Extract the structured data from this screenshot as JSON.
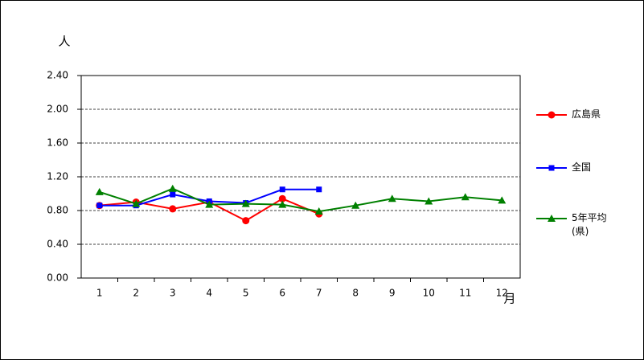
{
  "chart_data": {
    "type": "line",
    "y_unit": "人",
    "x_unit": "月",
    "categories": [
      "1",
      "2",
      "3",
      "4",
      "5",
      "6",
      "7",
      "8",
      "9",
      "10",
      "11",
      "12"
    ],
    "series": [
      {
        "name": "広島県",
        "color": "#ff0000",
        "marker": "circle",
        "values": [
          0.86,
          0.9,
          0.82,
          0.9,
          0.68,
          0.94,
          0.76,
          null,
          null,
          null,
          null,
          null
        ]
      },
      {
        "name": "全国",
        "color": "#0000ff",
        "marker": "square",
        "values": [
          0.86,
          0.86,
          0.99,
          0.91,
          0.89,
          1.05,
          1.05,
          null,
          null,
          null,
          null,
          null
        ]
      },
      {
        "name": "5年平均 (県)",
        "color": "#008000",
        "marker": "triangle",
        "values": [
          1.02,
          0.88,
          1.06,
          0.87,
          0.88,
          0.87,
          0.79,
          0.86,
          0.94,
          0.91,
          0.96,
          0.92
        ]
      }
    ],
    "ylim": [
      0,
      2.4
    ],
    "yticks": [
      {
        "value": 0,
        "label": "0.00"
      },
      {
        "value": 0.4,
        "label": "0.40"
      },
      {
        "value": 0.8,
        "label": "0.80"
      },
      {
        "value": 1.2,
        "label": "1.20"
      },
      {
        "value": 1.6,
        "label": "1.60"
      },
      {
        "value": 2.0,
        "label": "2.00"
      },
      {
        "value": 2.4,
        "label": "2.40"
      }
    ],
    "grid": true,
    "legend": "right"
  }
}
